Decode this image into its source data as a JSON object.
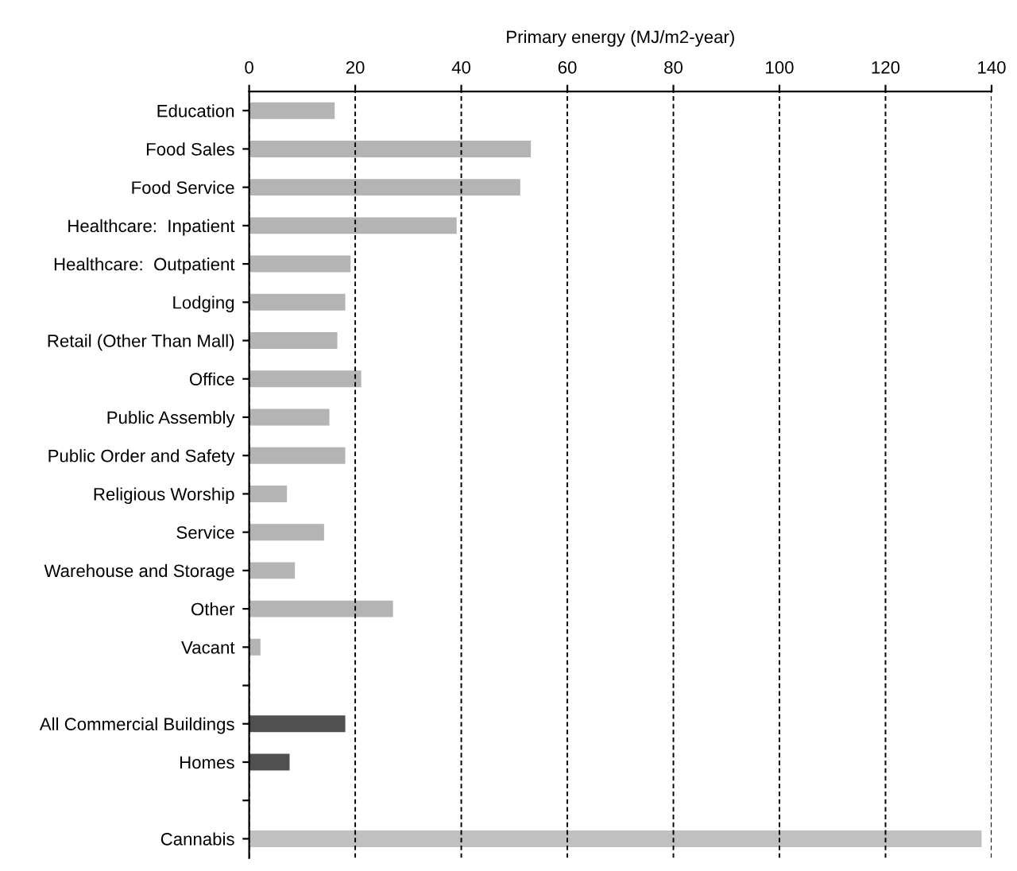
{
  "chart_data": {
    "type": "bar",
    "orientation": "horizontal",
    "xlabel": "Primary energy (MJ/m2-year)",
    "categories": [
      "Education",
      "Food Sales",
      "Food Service",
      "Healthcare:  Inpatient",
      "Healthcare:  Outpatient",
      "Lodging",
      "Retail (Other Than Mall)",
      "Office",
      "Public Assembly",
      "Public Order and Safety",
      "Religious Worship",
      "Service",
      "Warehouse and Storage",
      "Other",
      "Vacant",
      null,
      "All Commercial Buildings",
      "Homes",
      null,
      "Cannabis"
    ],
    "values": [
      16,
      53,
      51,
      39,
      19,
      18,
      16.5,
      21,
      15,
      18,
      7,
      14,
      8.5,
      27,
      2,
      null,
      18,
      7.5,
      null,
      138
    ],
    "colors": [
      "#b4b4b4",
      "#b4b4b4",
      "#b4b4b4",
      "#b4b4b4",
      "#b4b4b4",
      "#b4b4b4",
      "#b4b4b4",
      "#b4b4b4",
      "#b4b4b4",
      "#b4b4b4",
      "#b4b4b4",
      "#b4b4b4",
      "#b4b4b4",
      "#b4b4b4",
      "#b4b4b4",
      "#b4b4b4",
      "#505050",
      "#505050",
      "#b4b4b4",
      "#c0c0c0"
    ],
    "xlim": [
      0,
      140
    ],
    "xticks": [
      0,
      20,
      40,
      60,
      80,
      100,
      120,
      140
    ],
    "grid": "x"
  }
}
